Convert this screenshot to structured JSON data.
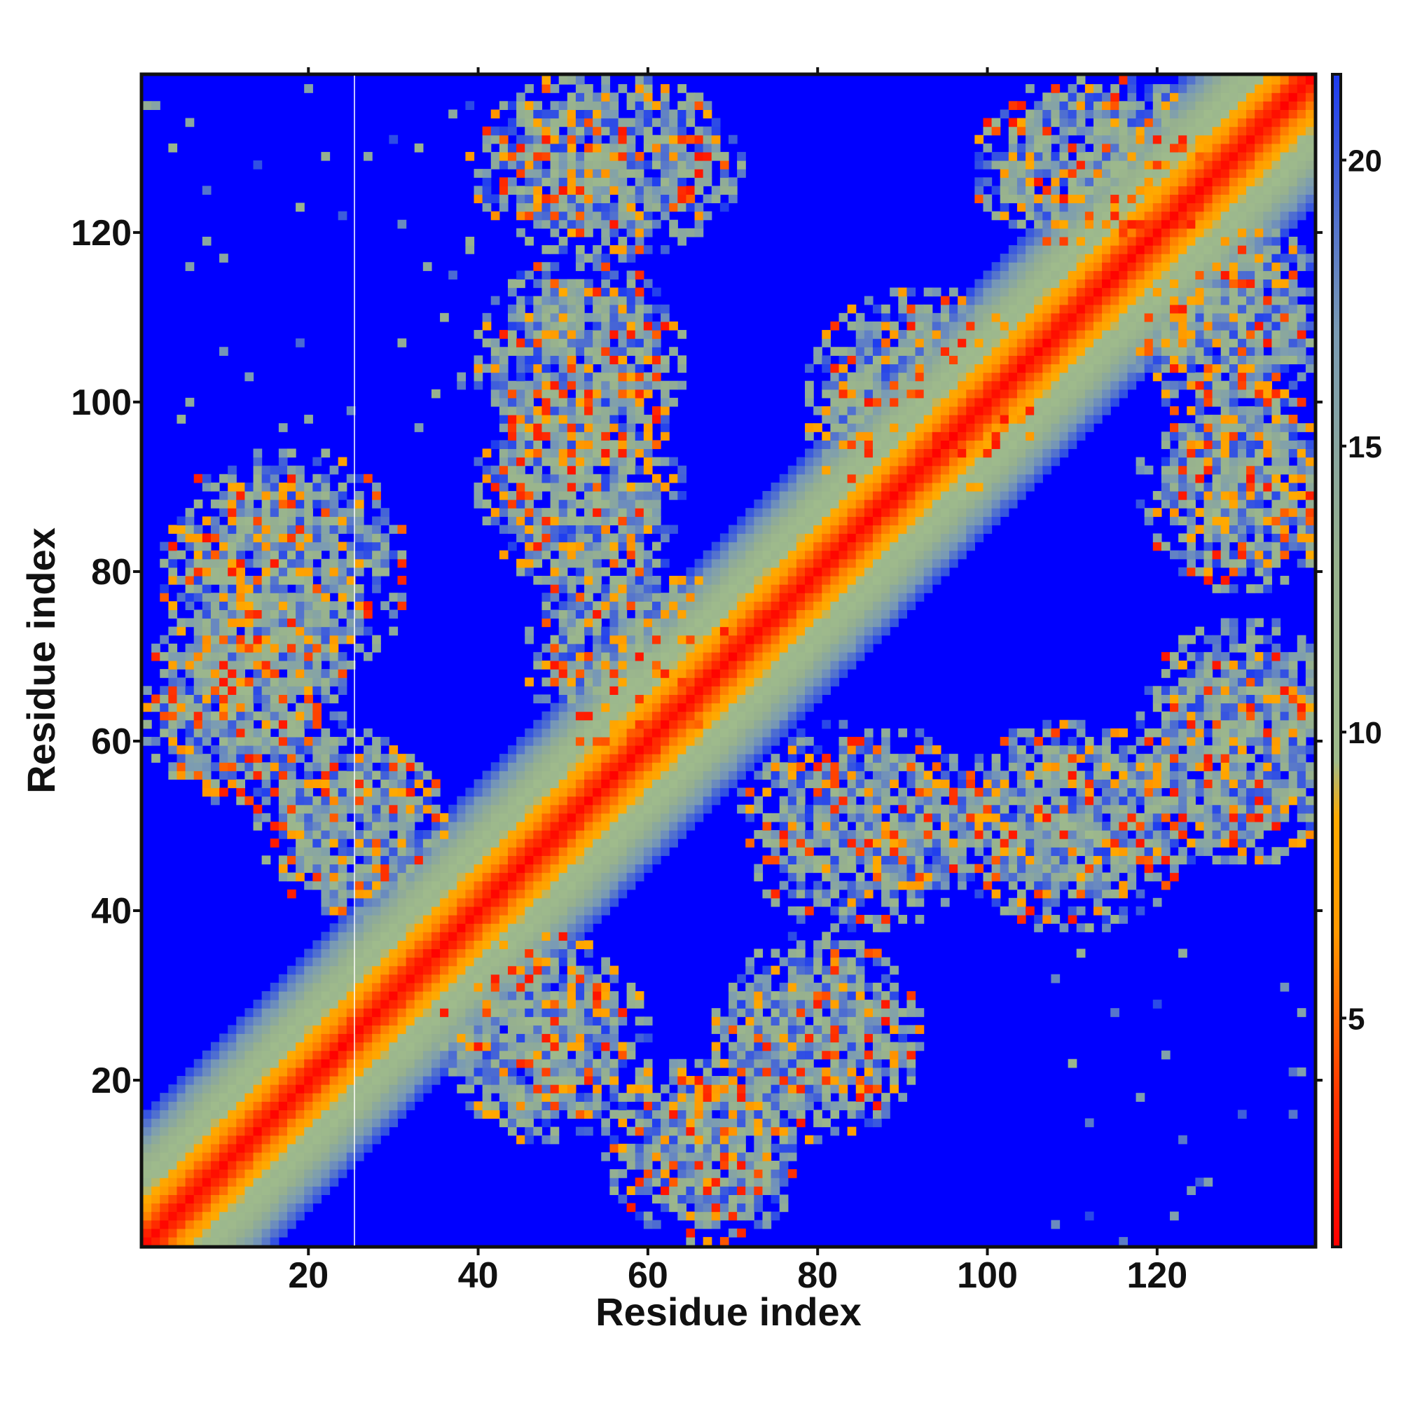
{
  "chart_data": {
    "type": "heatmap",
    "title": "",
    "xlabel": "Residue index",
    "ylabel": "Residue index",
    "xlim": [
      1,
      138
    ],
    "ylim": [
      1,
      138
    ],
    "n_residues": 138,
    "x_ticks": [
      20,
      40,
      60,
      80,
      100,
      120
    ],
    "y_ticks": [
      20,
      40,
      60,
      80,
      100,
      120
    ],
    "colorbar": {
      "range": [
        1,
        21.5
      ],
      "ticks": [
        5,
        10,
        15,
        20
      ],
      "stops": [
        {
          "value": 1,
          "color": "#ff0000"
        },
        {
          "value": 3.5,
          "color": "#ff3300"
        },
        {
          "value": 6.5,
          "color": "#ff9900"
        },
        {
          "value": 8.5,
          "color": "#ffaa00"
        },
        {
          "value": 9.5,
          "color": "#9fbb8c"
        },
        {
          "value": 13,
          "color": "#97b18e"
        },
        {
          "value": 17,
          "color": "#7a9bb4"
        },
        {
          "value": 21.5,
          "color": "#1e3cf0"
        }
      ],
      "background_color": "#0000ff"
    },
    "description_clusters": [
      {
        "x_center": 17,
        "y_center": 80,
        "x_width": 12,
        "y_width": 12
      },
      {
        "x_center": 12,
        "y_center": 65,
        "x_width": 10,
        "y_width": 10
      },
      {
        "x_center": 25,
        "y_center": 50,
        "x_width": 9,
        "y_width": 9
      },
      {
        "x_center": 52,
        "y_center": 105,
        "x_width": 10,
        "y_width": 10
      },
      {
        "x_center": 52,
        "y_center": 90,
        "x_width": 10,
        "y_width": 10
      },
      {
        "x_center": 58,
        "y_center": 70,
        "x_width": 10,
        "y_width": 10
      },
      {
        "x_center": 55,
        "y_center": 128,
        "x_width": 13,
        "y_width": 9
      },
      {
        "x_center": 48,
        "y_center": 25,
        "x_width": 10,
        "y_width": 10
      },
      {
        "x_center": 67,
        "y_center": 12,
        "x_width": 10,
        "y_width": 9
      },
      {
        "x_center": 80,
        "y_center": 25,
        "x_width": 10,
        "y_width": 10
      },
      {
        "x_center": 85,
        "y_center": 50,
        "x_width": 12,
        "y_width": 10
      },
      {
        "x_center": 92,
        "y_center": 100,
        "x_width": 11,
        "y_width": 11
      },
      {
        "x_center": 110,
        "y_center": 50,
        "x_width": 12,
        "y_width": 10
      },
      {
        "x_center": 113,
        "y_center": 128,
        "x_width": 12,
        "y_width": 9
      },
      {
        "x_center": 130,
        "y_center": 60,
        "x_width": 10,
        "y_width": 12
      },
      {
        "x_center": 130,
        "y_center": 90,
        "x_width": 10,
        "y_width": 10
      },
      {
        "x_center": 128,
        "y_center": 110,
        "x_width": 10,
        "y_width": 10
      }
    ]
  }
}
